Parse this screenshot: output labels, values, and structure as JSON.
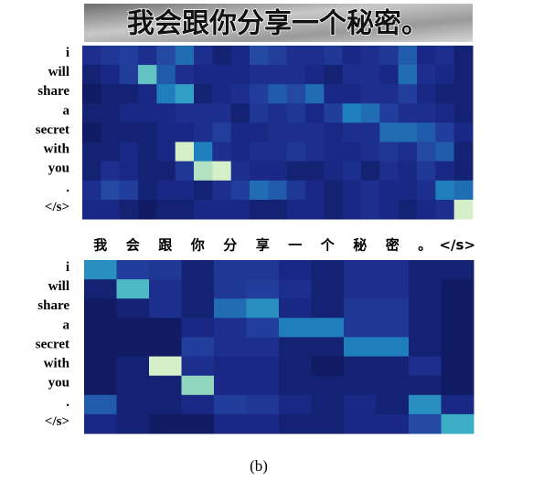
{
  "chart_data": [
    {
      "type": "heatmap",
      "image_text": "我会跟你分享一个秘密。",
      "rows": [
        "i",
        "will",
        "share",
        "a",
        "secret",
        "with",
        "you",
        ".",
        "</s>"
      ],
      "colors": [
        "#0b1552",
        "#1a2a8a",
        "#2343a0",
        "#1f7fbd",
        "#3fb4c8",
        "#86d2bc",
        "#f7fcce"
      ],
      "values": [
        [
          0.2,
          0.25,
          0.3,
          0.2,
          0.35,
          0.45,
          0.2,
          0.1,
          0.15,
          0.35,
          0.3,
          0.2,
          0.2,
          0.25,
          0.15,
          0.2,
          0.25,
          0.4,
          0.15,
          0.2,
          0.1
        ],
        [
          0.1,
          0.15,
          0.3,
          0.75,
          0.4,
          0.2,
          0.15,
          0.15,
          0.15,
          0.2,
          0.2,
          0.2,
          0.15,
          0.1,
          0.2,
          0.2,
          0.15,
          0.45,
          0.2,
          0.15,
          0.1
        ],
        [
          0.05,
          0.1,
          0.1,
          0.15,
          0.5,
          0.6,
          0.1,
          0.15,
          0.2,
          0.3,
          0.4,
          0.35,
          0.45,
          0.15,
          0.15,
          0.2,
          0.2,
          0.3,
          0.15,
          0.1,
          0.1
        ],
        [
          0.1,
          0.1,
          0.15,
          0.15,
          0.15,
          0.2,
          0.2,
          0.2,
          0.1,
          0.25,
          0.2,
          0.25,
          0.15,
          0.3,
          0.5,
          0.45,
          0.3,
          0.2,
          0.2,
          0.15,
          0.1
        ],
        [
          0.05,
          0.1,
          0.1,
          0.1,
          0.15,
          0.15,
          0.2,
          0.3,
          0.15,
          0.15,
          0.2,
          0.2,
          0.2,
          0.15,
          0.2,
          0.2,
          0.45,
          0.45,
          0.4,
          0.3,
          0.15
        ],
        [
          0.1,
          0.1,
          0.15,
          0.1,
          0.15,
          0.95,
          0.5,
          0.2,
          0.15,
          0.2,
          0.2,
          0.25,
          0.2,
          0.15,
          0.15,
          0.2,
          0.25,
          0.2,
          0.35,
          0.4,
          0.1
        ],
        [
          0.1,
          0.2,
          0.15,
          0.1,
          0.1,
          0.25,
          0.9,
          0.95,
          0.2,
          0.15,
          0.15,
          0.1,
          0.1,
          0.15,
          0.2,
          0.1,
          0.2,
          0.15,
          0.25,
          0.15,
          0.1
        ],
        [
          0.2,
          0.35,
          0.3,
          0.1,
          0.15,
          0.15,
          0.1,
          0.2,
          0.3,
          0.45,
          0.4,
          0.25,
          0.15,
          0.1,
          0.15,
          0.2,
          0.15,
          0.15,
          0.2,
          0.5,
          0.45
        ],
        [
          0.15,
          0.15,
          0.1,
          0.05,
          0.1,
          0.1,
          0.15,
          0.15,
          0.15,
          0.1,
          0.1,
          0.15,
          0.15,
          0.1,
          0.15,
          0.2,
          0.15,
          0.1,
          0.15,
          0.2,
          0.95
        ]
      ]
    },
    {
      "type": "heatmap",
      "columns": [
        "我",
        "会",
        "跟",
        "你",
        "分",
        "享",
        "一",
        "个",
        "秘",
        "密",
        "。",
        "</s>"
      ],
      "rows": [
        "i",
        "will",
        "share",
        "a",
        "secret",
        "with",
        "you",
        ".",
        "</s>"
      ],
      "colors": [
        "#0b1552",
        "#1a2a8a",
        "#2343a0",
        "#1f7fbd",
        "#3fb4c8",
        "#86d2bc",
        "#f7fcce"
      ],
      "values": [
        [
          0.55,
          0.3,
          0.25,
          0.1,
          0.25,
          0.25,
          0.15,
          0.1,
          0.2,
          0.2,
          0.1,
          0.1
        ],
        [
          0.1,
          0.7,
          0.2,
          0.1,
          0.25,
          0.3,
          0.2,
          0.1,
          0.2,
          0.2,
          0.1,
          0.05
        ],
        [
          0.05,
          0.1,
          0.2,
          0.1,
          0.45,
          0.55,
          0.15,
          0.1,
          0.25,
          0.25,
          0.1,
          0.05
        ],
        [
          0.05,
          0.05,
          0.05,
          0.15,
          0.2,
          0.3,
          0.5,
          0.5,
          0.25,
          0.25,
          0.1,
          0.05
        ],
        [
          0.05,
          0.05,
          0.05,
          0.3,
          0.2,
          0.2,
          0.1,
          0.1,
          0.5,
          0.5,
          0.1,
          0.05
        ],
        [
          0.05,
          0.1,
          0.95,
          0.2,
          0.15,
          0.15,
          0.1,
          0.05,
          0.1,
          0.1,
          0.2,
          0.05
        ],
        [
          0.05,
          0.1,
          0.1,
          0.85,
          0.15,
          0.15,
          0.1,
          0.1,
          0.1,
          0.1,
          0.1,
          0.05
        ],
        [
          0.4,
          0.1,
          0.1,
          0.15,
          0.3,
          0.25,
          0.15,
          0.1,
          0.15,
          0.1,
          0.55,
          0.15
        ],
        [
          0.15,
          0.1,
          0.05,
          0.05,
          0.15,
          0.15,
          0.1,
          0.1,
          0.15,
          0.15,
          0.35,
          0.65
        ]
      ]
    }
  ],
  "caption": "(b)"
}
